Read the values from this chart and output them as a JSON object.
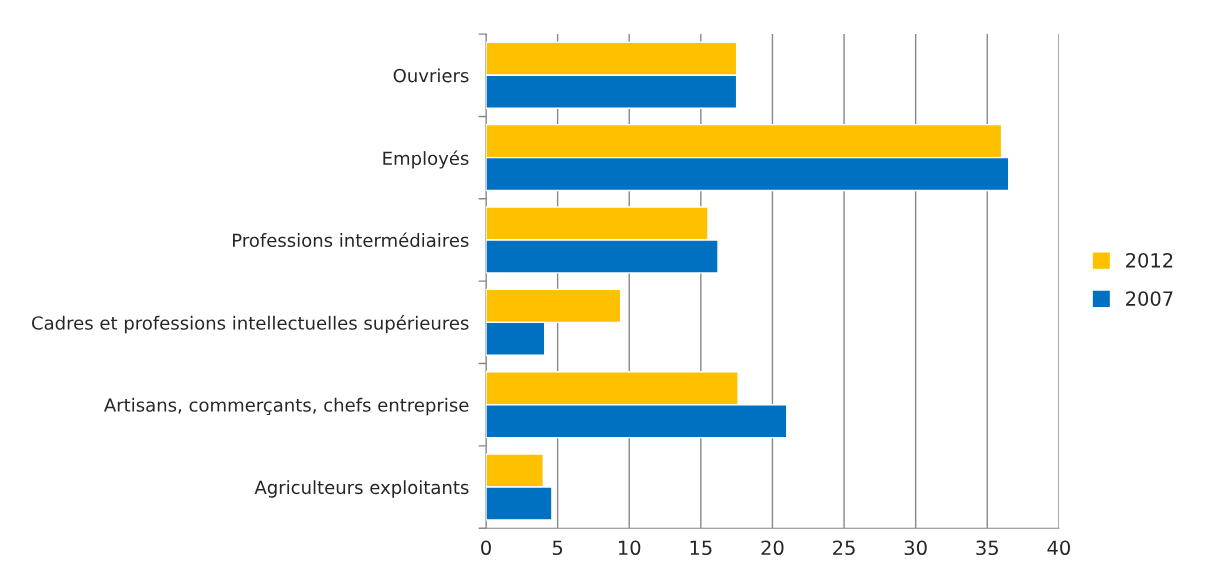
{
  "chart_data": {
    "type": "bar",
    "orientation": "horizontal",
    "categories": [
      "Ouvriers",
      "Employés",
      "Professions intermédiaires",
      "Cadres et professions intellectuelles supérieures",
      "Artisans, commerçants, chefs entreprise",
      "Agriculteurs exploitants"
    ],
    "series": [
      {
        "name": "2012",
        "color": "#ffc000",
        "values": [
          17.5,
          36.0,
          15.5,
          9.4,
          17.6,
          4.0
        ]
      },
      {
        "name": "2007",
        "color": "#0070c0",
        "values": [
          17.5,
          36.5,
          16.2,
          4.1,
          21.0,
          4.6
        ]
      }
    ],
    "xlim": [
      0,
      40
    ],
    "xticks": [
      0,
      5,
      10,
      15,
      20,
      25,
      30,
      35,
      40
    ],
    "grid": "x",
    "legend": "right"
  }
}
